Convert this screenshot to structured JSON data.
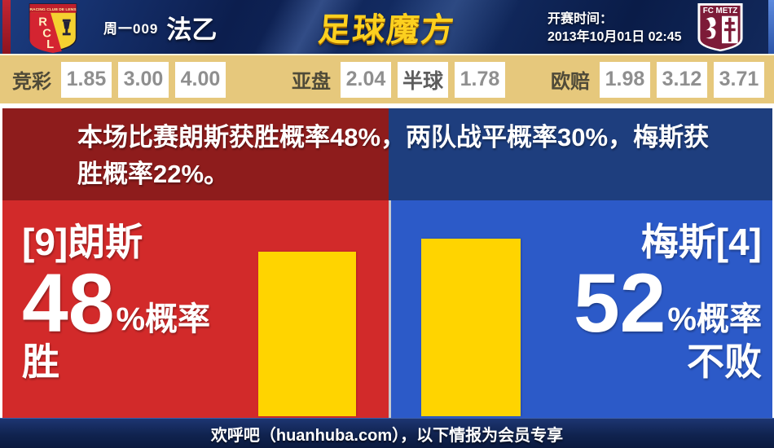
{
  "header": {
    "home_badge": {
      "abbr": "RCL",
      "club": "RACING CLUB DE LENS"
    },
    "match_code": "周一009",
    "league": "法乙",
    "brand": "足球魔方",
    "kickoff_label": "开赛时间：",
    "kickoff_time": "2013年10月01日 02:45",
    "away_badge": {
      "club": "FC METZ"
    }
  },
  "odds": {
    "jingcai": {
      "label": "竞彩",
      "values": [
        "1.85",
        "3.00",
        "4.00"
      ]
    },
    "yapan": {
      "label": "亚盘",
      "home": "2.04",
      "handicap": "半球",
      "away": "1.78"
    },
    "oupei": {
      "label": "欧赔",
      "values": [
        "1.98",
        "3.12",
        "3.71"
      ]
    }
  },
  "summary": {
    "lines": {
      "0": "本场比赛朗斯获胜概率48%，两队战平概率30%，梅斯获",
      "1": "胜概率22%。"
    }
  },
  "home": {
    "name": "[9]朗斯",
    "percent": "48",
    "percent_suffix": "%概率",
    "outcome": "胜",
    "bar_pct": 48
  },
  "away": {
    "name": "梅斯[4]",
    "percent": "52",
    "percent_suffix": "%概率",
    "outcome": "不败",
    "bar_pct": 52
  },
  "footer": {
    "text": "欢呼吧（huanhuba.com），以下情报为会员专享"
  },
  "colors": {
    "bright_red": "#d22a2a",
    "bright_blue": "#2c5ac8",
    "dark_red": "#8e1c1c",
    "dark_blue": "#1e3e7e",
    "bar_yellow": "#ffd400",
    "odds_bg": "#e6c87c"
  },
  "chart_data": {
    "type": "bar",
    "categories": [
      "朗斯 胜",
      "梅斯 不败"
    ],
    "values": [
      48,
      52
    ],
    "unit": "%",
    "bar_color": "#ffd400"
  }
}
